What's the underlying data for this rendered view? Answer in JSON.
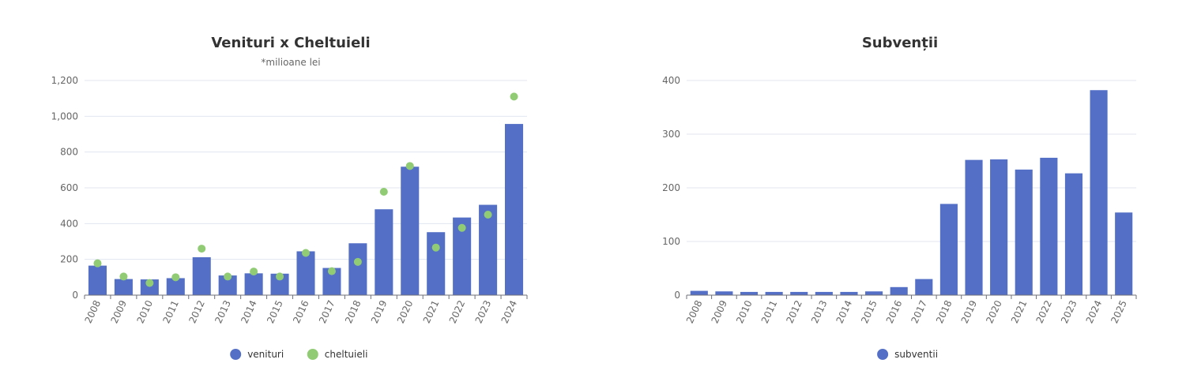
{
  "colors": {
    "venituri": "#5470c6",
    "cheltuieli": "#91cc75",
    "subventii": "#5470c6",
    "grid": "#e0e6f1",
    "axis": "#6e7079"
  },
  "chart_data": [
    {
      "type": "bar",
      "title": "Venituri x Cheltuieli",
      "subtitle": "*milioane lei",
      "categories": [
        "2008",
        "2009",
        "2010",
        "2011",
        "2012",
        "2013",
        "2014",
        "2015",
        "2016",
        "2017",
        "2018",
        "2019",
        "2020",
        "2021",
        "2022",
        "2023",
        "2024"
      ],
      "yticks": [
        "0",
        "200",
        "400",
        "600",
        "800",
        "1,000",
        "1,200"
      ],
      "ylim": [
        0,
        1200
      ],
      "series": [
        {
          "name": "venituri",
          "type": "bar",
          "values": [
            165,
            90,
            88,
            95,
            212,
            110,
            122,
            120,
            245,
            152,
            290,
            480,
            718,
            352,
            434,
            505,
            957
          ]
        },
        {
          "name": "cheltuieli",
          "type": "scatter",
          "values": [
            178,
            104,
            68,
            100,
            260,
            104,
            132,
            104,
            236,
            134,
            186,
            578,
            722,
            266,
            376,
            450,
            1110
          ]
        }
      ],
      "legend": "bottom-center",
      "grid": true
    },
    {
      "type": "bar",
      "title": "Subvenții",
      "categories": [
        "2008",
        "2009",
        "2010",
        "2011",
        "2012",
        "2013",
        "2014",
        "2015",
        "2016",
        "2017",
        "2018",
        "2019",
        "2020",
        "2021",
        "2022",
        "2023",
        "2024",
        "2025"
      ],
      "yticks": [
        "0",
        "100",
        "200",
        "300",
        "400"
      ],
      "ylim": [
        0,
        400
      ],
      "series": [
        {
          "name": "subventii",
          "type": "bar",
          "values": [
            8,
            7,
            6,
            6,
            6,
            6,
            6,
            7,
            15,
            30,
            170,
            252,
            253,
            234,
            256,
            227,
            382,
            154
          ]
        }
      ],
      "legend": "bottom-center",
      "grid": true
    }
  ]
}
